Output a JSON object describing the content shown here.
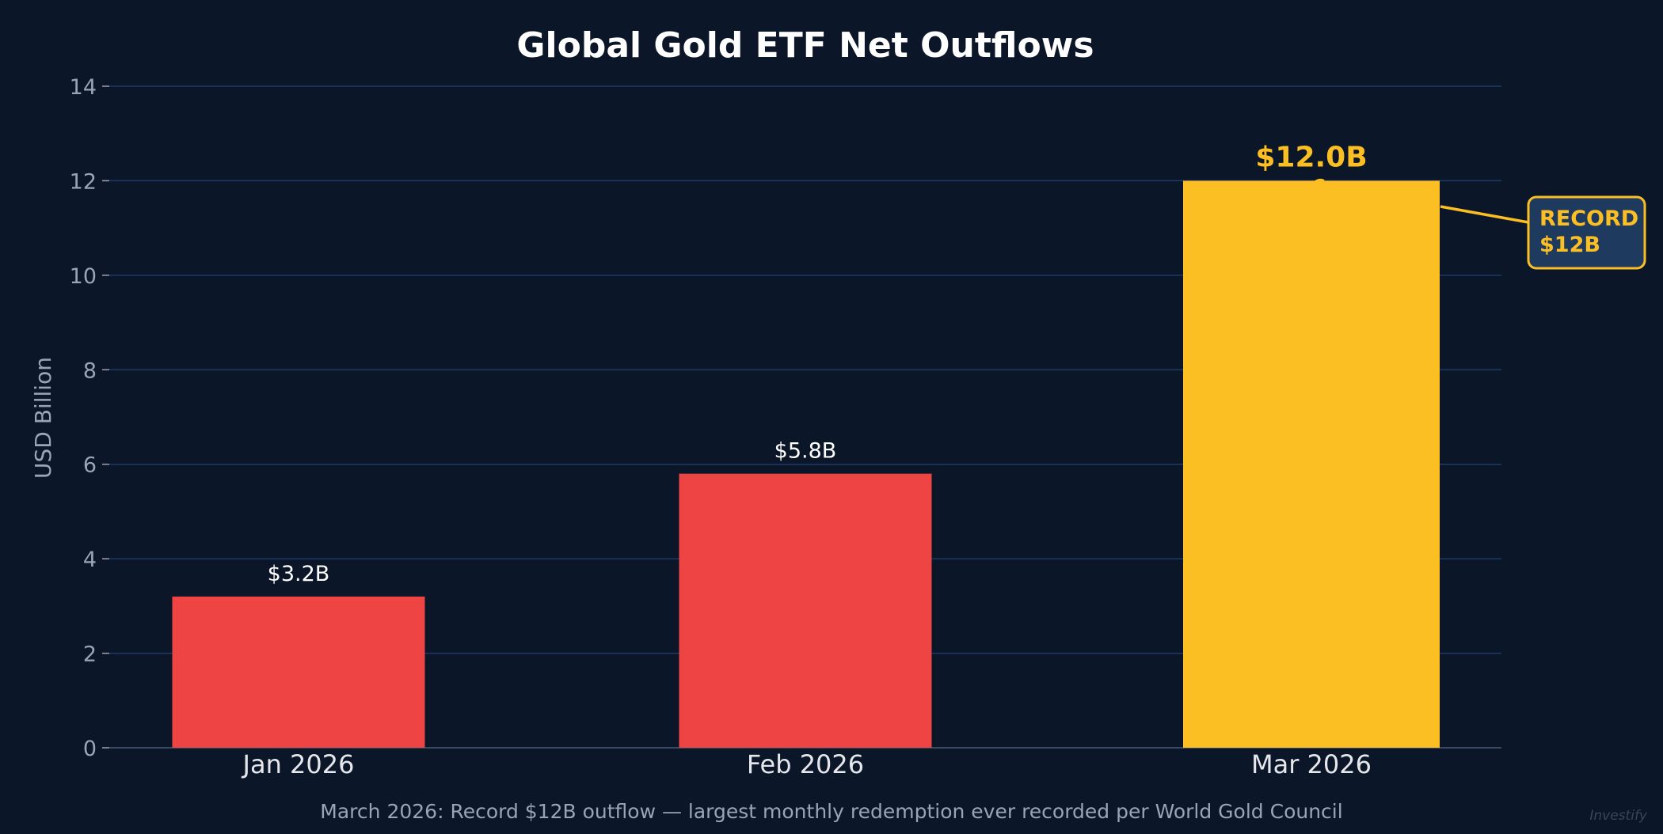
{
  "colors": {
    "background": "#0b1628",
    "grid": "#1e3a66",
    "axis_text": "#9aa4b5",
    "label_text": "#ffffff",
    "outflow_bar": "#ef4444",
    "record_bar": "#fbbf24",
    "callout_fill": "#1e3a5f",
    "callout_text": "#fbbf24",
    "watermark": "#3a4558"
  },
  "chart_data": {
    "type": "bar",
    "title": "Global Gold ETF Net Outflows",
    "xlabel": "",
    "ylabel": "USD Billion",
    "ylim": [
      0,
      14
    ],
    "yticks": [
      0,
      2,
      4,
      6,
      8,
      10,
      12,
      14
    ],
    "grid": true,
    "categories": [
      "Jan 2026",
      "Feb 2026",
      "Mar 2026"
    ],
    "values": [
      3.2,
      5.8,
      12.0
    ],
    "data_labels": [
      "$3.2B",
      "$5.8B",
      "$12.0B"
    ],
    "highlight_index": 2,
    "annotation": {
      "lines": [
        "RECORD",
        "$12B"
      ],
      "target_category": "Mar 2026",
      "target_value": 12.0
    },
    "caption": "March 2026: Record $12B outflow — largest monthly redemption ever recorded per World Gold Council",
    "watermark": "Investify"
  }
}
